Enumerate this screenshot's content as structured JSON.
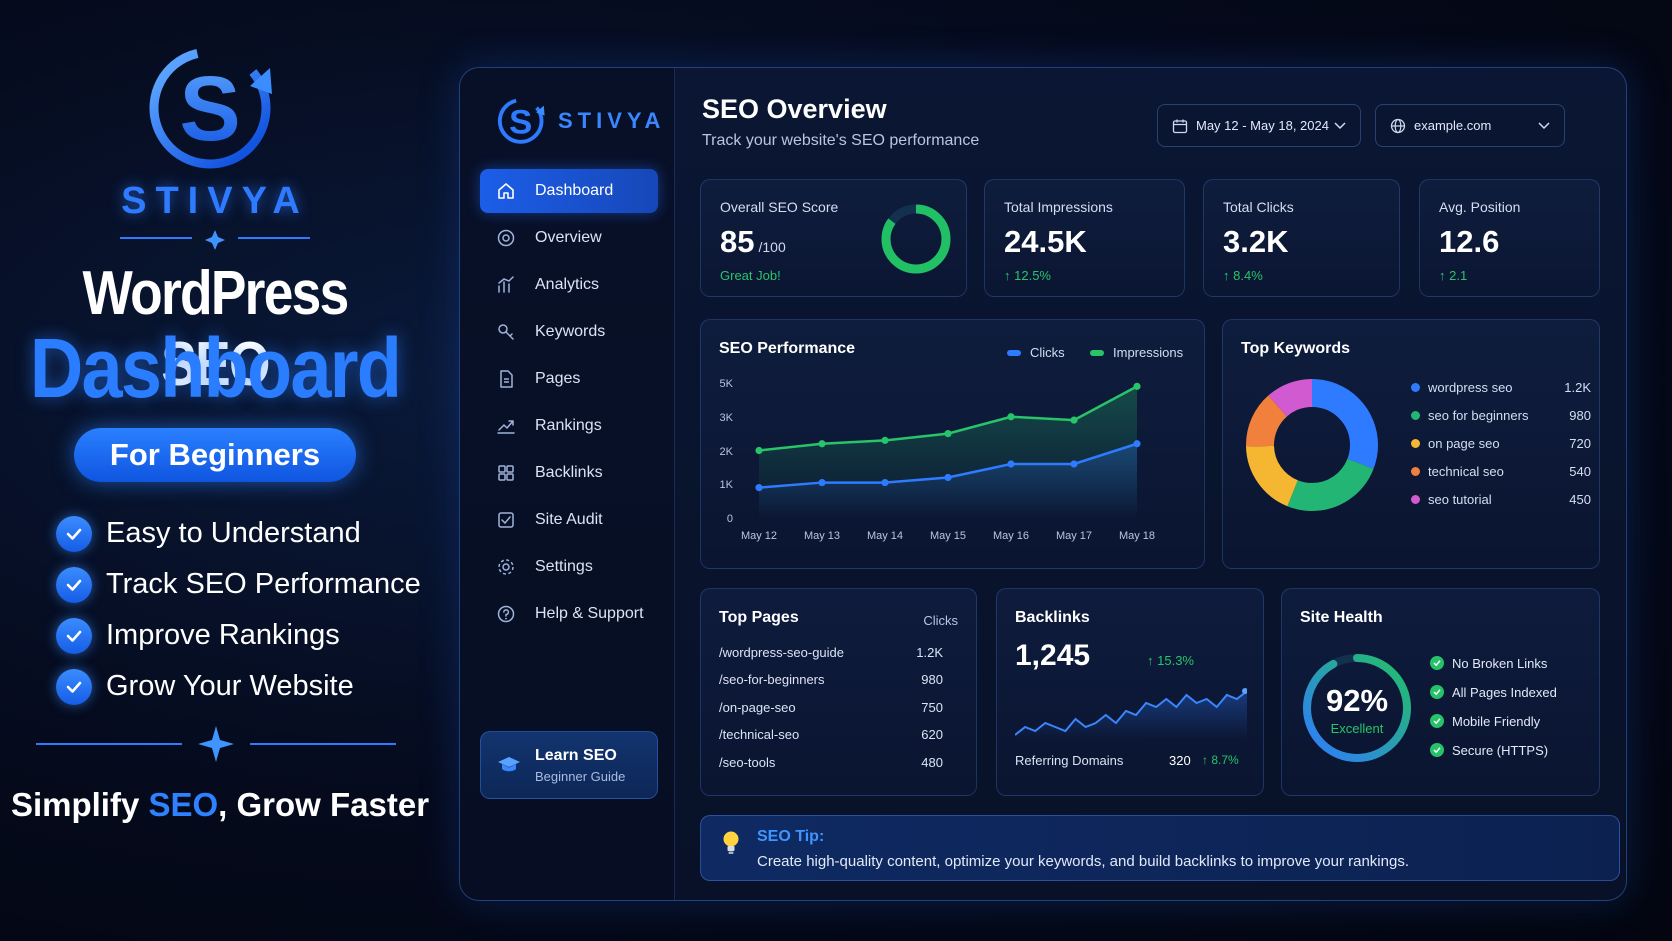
{
  "promo": {
    "brand": "STIVYA",
    "title_line1": "WordPress SEO",
    "title_line2": "Dashboard",
    "pill": "For Beginners",
    "features": [
      "Easy to Understand",
      "Track SEO Performance",
      "Improve Rankings",
      "Grow Your Website"
    ],
    "tagline_part1": "Simplify ",
    "tagline_highlight": "SEO",
    "tagline_part2": ", Grow Faster"
  },
  "sidebar": {
    "brand": "STIVYA",
    "items": [
      {
        "label": "Dashboard",
        "icon": "home-icon",
        "active": true
      },
      {
        "label": "Overview",
        "icon": "target-icon"
      },
      {
        "label": "Analytics",
        "icon": "analytics-icon"
      },
      {
        "label": "Keywords",
        "icon": "key-icon"
      },
      {
        "label": "Pages",
        "icon": "page-icon"
      },
      {
        "label": "Rankings",
        "icon": "rankings-icon"
      },
      {
        "label": "Backlinks",
        "icon": "backlinks-icon"
      },
      {
        "label": "Site Audit",
        "icon": "audit-icon"
      },
      {
        "label": "Settings",
        "icon": "gear-icon"
      },
      {
        "label": "Help & Support",
        "icon": "help-icon"
      }
    ],
    "learn_title": "Learn SEO",
    "learn_sub": "Beginner Guide"
  },
  "header": {
    "title": "SEO Overview",
    "subtitle": "Track your website's SEO performance",
    "date_range": "May 12 - May 18, 2024",
    "site": "example.com"
  },
  "stats": {
    "score": {
      "label": "Overall SEO Score",
      "value": "85",
      "suffix": "/100",
      "note": "Great Job!",
      "fraction": 0.85
    },
    "impressions": {
      "label": "Total Impressions",
      "value": "24.5K",
      "delta": "12.5%"
    },
    "clicks": {
      "label": "Total Clicks",
      "value": "3.2K",
      "delta": "8.4%"
    },
    "position": {
      "label": "Avg. Position",
      "value": "12.6",
      "delta": "2.1"
    }
  },
  "performance": {
    "title": "SEO Performance",
    "legend_clicks": "Clicks",
    "legend_impressions": "Impressions"
  },
  "chart_data": {
    "type": "line",
    "categories": [
      "May 12",
      "May 13",
      "May 14",
      "May 15",
      "May 16",
      "May 17",
      "May 18"
    ],
    "y_tick_labels": [
      "0",
      "1K",
      "2K",
      "3K",
      "5K"
    ],
    "series": [
      {
        "name": "Clicks",
        "color": "#2f7bff",
        "values": [
          0.9,
          1.05,
          1.05,
          1.2,
          1.6,
          1.6,
          2.2
        ]
      },
      {
        "name": "Impressions",
        "color": "#27c46a",
        "values": [
          2.0,
          2.2,
          2.3,
          2.5,
          3.0,
          2.9,
          3.9
        ]
      }
    ],
    "grid": false
  },
  "keywords": {
    "title": "Top Keywords",
    "items": [
      {
        "label": "wordpress seo",
        "value": "1.2K",
        "num": 1200,
        "color": "#2f7bff"
      },
      {
        "label": "seo for beginners",
        "value": "980",
        "num": 980,
        "color": "#22b573"
      },
      {
        "label": "on page seo",
        "value": "720",
        "num": 720,
        "color": "#f5b731"
      },
      {
        "label": "technical seo",
        "value": "540",
        "num": 540,
        "color": "#f0803c"
      },
      {
        "label": "seo tutorial",
        "value": "450",
        "num": 450,
        "color": "#d25ad1"
      }
    ]
  },
  "top_pages": {
    "title": "Top Pages",
    "col_header": "Clicks",
    "rows": [
      {
        "path": "/wordpress-seo-guide",
        "clicks": "1.2K"
      },
      {
        "path": "/seo-for-beginners",
        "clicks": "980"
      },
      {
        "path": "/on-page-seo",
        "clicks": "750"
      },
      {
        "path": "/technical-seo",
        "clicks": "620"
      },
      {
        "path": "/seo-tools",
        "clicks": "480"
      }
    ]
  },
  "backlinks": {
    "title": "Backlinks",
    "value": "1,245",
    "delta": "15.3%",
    "referring_label": "Referring Domains",
    "referring_value": "320",
    "referring_delta": "8.7%",
    "sparkline": [
      3,
      5,
      4,
      6,
      5,
      4,
      7,
      5,
      6,
      8,
      6,
      9,
      8,
      11,
      10,
      12,
      10,
      13,
      11,
      12,
      10,
      13,
      12,
      14
    ]
  },
  "health": {
    "title": "Site Health",
    "value": "92%",
    "label": "Excellent",
    "fraction": 0.92,
    "items": [
      "No Broken Links",
      "All Pages Indexed",
      "Mobile Friendly",
      "Secure (HTTPS)"
    ]
  },
  "tip": {
    "title": "SEO Tip:",
    "text": "Create high-quality content, optimize your keywords, and build backlinks to improve your rankings."
  }
}
